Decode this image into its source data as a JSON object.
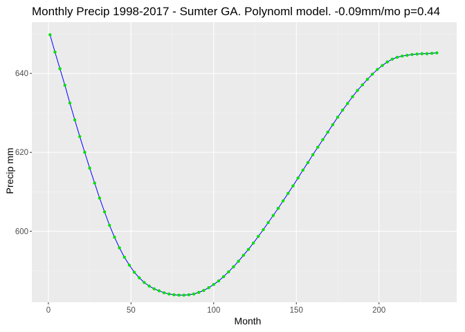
{
  "chart_data": {
    "type": "line",
    "title": "Monthly Precip 1998-2017 - Sumter GA. Polynoml model. -0.09mm/mo p=0.44",
    "xlabel": "Month",
    "ylabel": "Precip mm",
    "xlim": [
      -10,
      247
    ],
    "ylim": [
      582,
      653
    ],
    "x_ticks": [
      0,
      50,
      100,
      150,
      200
    ],
    "y_ticks": [
      600,
      620,
      640
    ],
    "grid": true,
    "legend": "none",
    "line_color": "#0000ff",
    "point_color": "#00e000",
    "panel_color": "#ebebeb",
    "series": [
      {
        "x": [
          1,
          4,
          7,
          10,
          13,
          16,
          19,
          22,
          25,
          28,
          31,
          34,
          37,
          40,
          43,
          46,
          49,
          52,
          55,
          58,
          61,
          64,
          67,
          70,
          73,
          76,
          79,
          82,
          85,
          88,
          91,
          94,
          97,
          100,
          103,
          106,
          109,
          112,
          115,
          118,
          121,
          124,
          127,
          130,
          133,
          136,
          139,
          142,
          145,
          148,
          151,
          154,
          157,
          160,
          163,
          166,
          169,
          172,
          175,
          178,
          181,
          184,
          187,
          190,
          193,
          196,
          199,
          202,
          205,
          208,
          211,
          214,
          217,
          220,
          223,
          226,
          229,
          232,
          235
        ],
        "y": [
          649.8,
          645.4,
          641.2,
          637.0,
          632.5,
          628.2,
          624.0,
          620.0,
          616.0,
          612.2,
          608.4,
          604.9,
          601.5,
          598.5,
          595.8,
          593.4,
          591.4,
          589.6,
          588.2,
          587.0,
          586.1,
          585.4,
          584.9,
          584.4,
          584.1,
          583.9,
          583.8,
          583.8,
          583.9,
          584.1,
          584.5,
          585.0,
          585.7,
          586.5,
          587.4,
          588.5,
          589.7,
          591.0,
          592.4,
          593.9,
          595.4,
          597.0,
          598.7,
          600.4,
          602.2,
          604.0,
          605.8,
          607.7,
          609.6,
          611.5,
          613.5,
          615.5,
          617.4,
          619.4,
          621.3,
          623.2,
          625.1,
          627.0,
          628.9,
          630.7,
          632.4,
          634.1,
          635.7,
          637.1,
          638.5,
          639.8,
          641.0,
          642.0,
          642.9,
          643.6,
          644.1,
          644.4,
          644.6,
          644.8,
          644.9,
          645.0,
          645.0,
          645.1,
          645.2
        ]
      }
    ]
  }
}
